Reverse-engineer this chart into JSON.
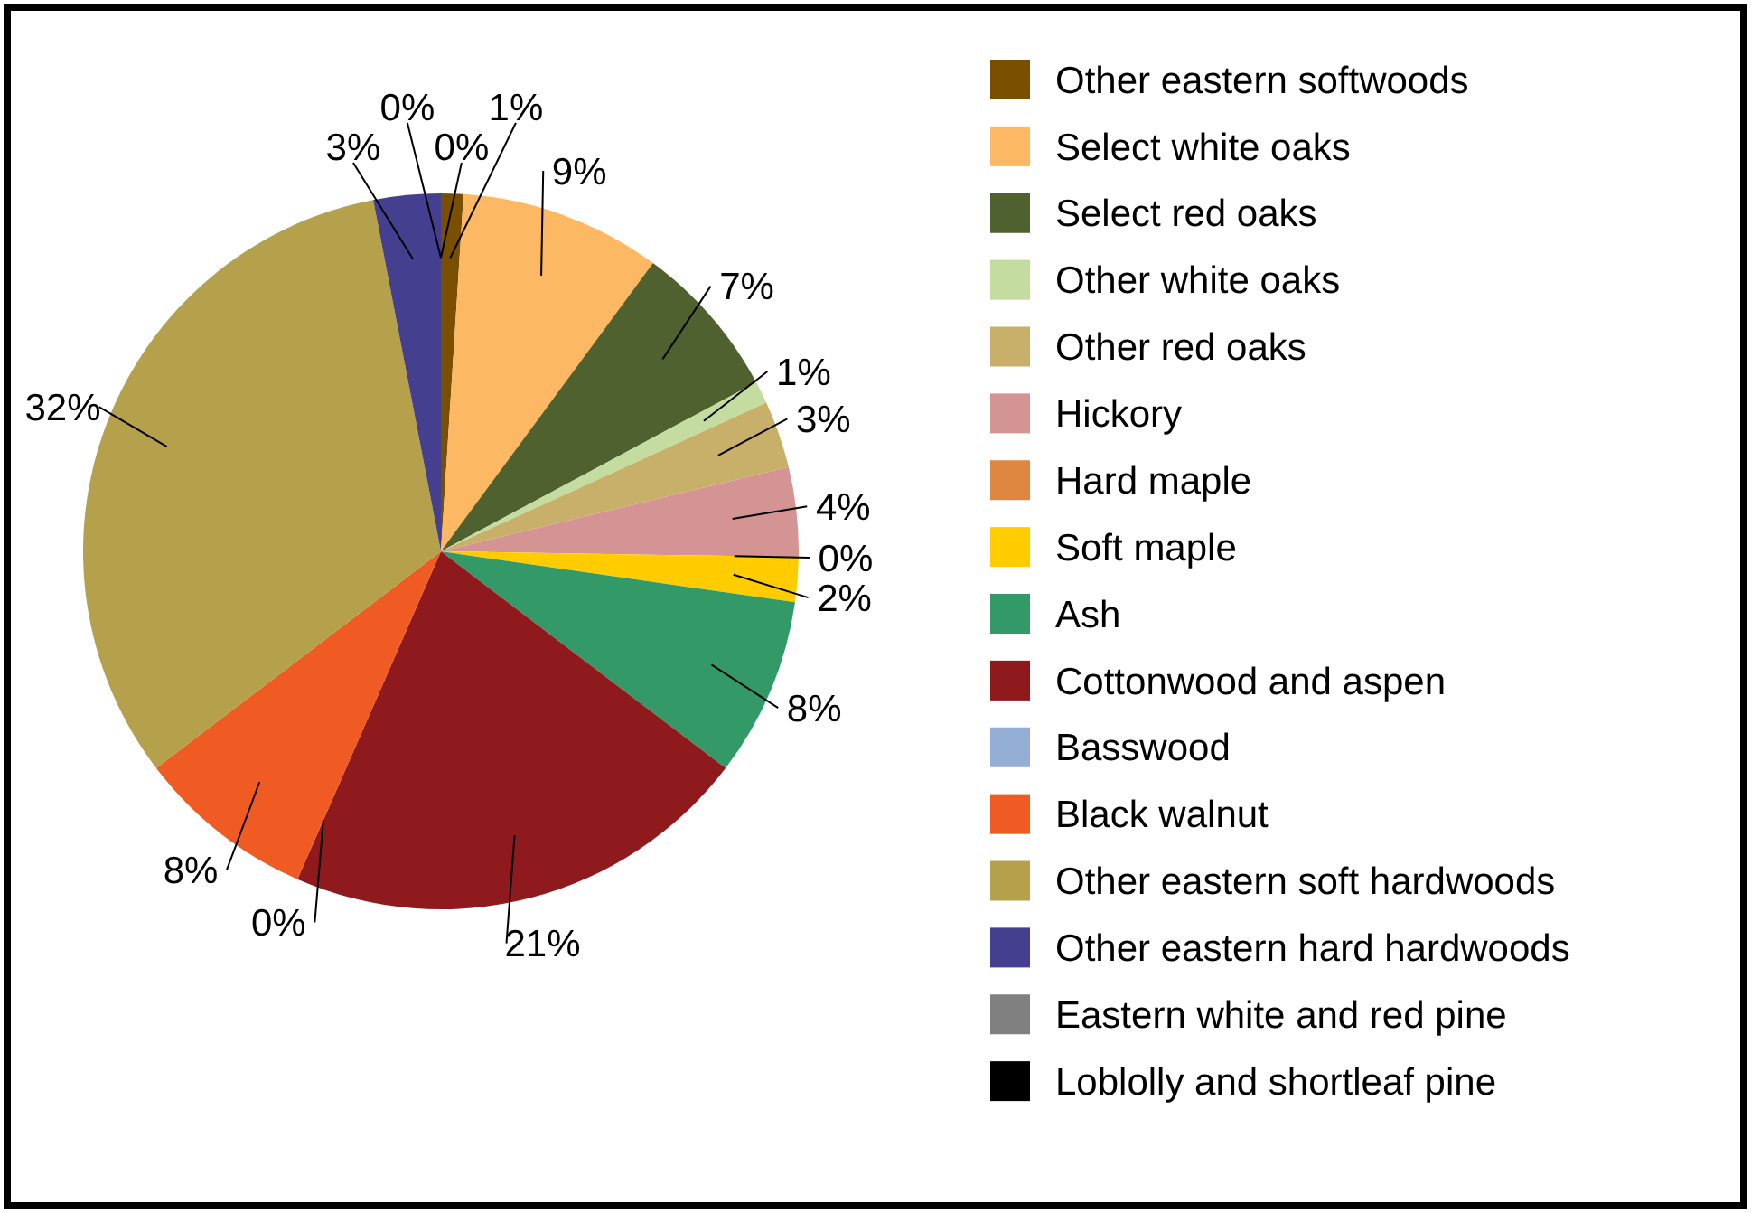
{
  "chart_data": {
    "type": "pie",
    "categories": [
      "Other eastern softwoods",
      "Select white oaks",
      "Select red oaks",
      "Other white oaks",
      "Other red oaks",
      "Hickory",
      "Hard maple",
      "Soft maple",
      "Ash",
      "Cottonwood and aspen",
      "Basswood",
      "Black walnut",
      "Other eastern soft hardwoods",
      "Other eastern hard hardwoods",
      "Eastern white and red pine",
      "Loblolly and shortleaf pine"
    ],
    "values": [
      1,
      9,
      7,
      1,
      3,
      4,
      0,
      2,
      8,
      21,
      0,
      8,
      32,
      3,
      0,
      0
    ],
    "value_labels": [
      "1%",
      "9%",
      "7%",
      "1%",
      "3%",
      "4%",
      "0%",
      "2%",
      "8%",
      "21%",
      "0%",
      "8%",
      "32%",
      "3%",
      "0%",
      "0%"
    ],
    "colors": [
      "#7a5000",
      "#fdb863",
      "#4f612e",
      "#c4dca0",
      "#c9b06a",
      "#d49494",
      "#df8740",
      "#ffcc00",
      "#339966",
      "#8e1a1d",
      "#95aed6",
      "#f05a23",
      "#b5a04c",
      "#453f90",
      "#808080",
      "#000000"
    ],
    "legend": "right"
  }
}
